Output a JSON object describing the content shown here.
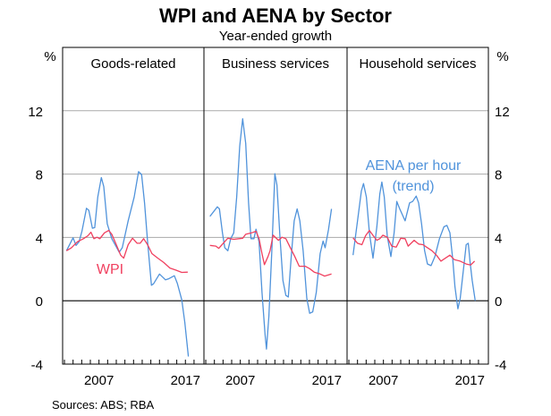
{
  "chart_data": {
    "type": "line",
    "title": "WPI and AENA by Sector",
    "subtitle": "Year-ended growth",
    "ylabel": "%",
    "ylim": [
      -4,
      16
    ],
    "yticks": [
      -4,
      0,
      4,
      8,
      12
    ],
    "xlim": [
      2002.79,
      2019.1
    ],
    "xtick_labels": [
      "2007",
      "2017"
    ],
    "xtick_values": [
      2007,
      2017
    ],
    "grid": true,
    "colors": {
      "AENA": "#5093db",
      "WPI": "#f0405f"
    },
    "annotations": {
      "wpi": "WPI",
      "aena_line1": "AENA per hour",
      "aena_line2": "(trend)"
    },
    "source": "Sources:   ABS; RBA",
    "panels": [
      {
        "title": "Goods-related",
        "series": [
          {
            "key": "AENA",
            "x": [
              2003.24,
              2004.0,
              2004.34,
              2004.69,
              2005.03,
              2005.55,
              2005.82,
              2006.24,
              2006.51,
              2006.86,
              2007.27,
              2007.55,
              2007.96,
              2008.48,
              2009.34,
              2009.69,
              2010.38,
              2011.07,
              2011.58,
              2011.93,
              2012.27,
              2012.62,
              2013.07,
              2013.31,
              2014.0,
              2014.69,
              2015.03,
              2015.72,
              2016.07,
              2016.58,
              2016.93,
              2017.34
            ],
            "y": [
              3.16,
              3.98,
              3.5,
              3.73,
              4.39,
              5.84,
              5.71,
              4.58,
              4.62,
              6.55,
              7.78,
              7.21,
              4.86,
              3.92,
              3.07,
              3.35,
              5.05,
              6.55,
              8.15,
              7.97,
              6.18,
              3.73,
              0.98,
              1.07,
              1.69,
              1.32,
              1.38,
              1.58,
              1.09,
              0.06,
              -1.36,
              -3.52
            ]
          },
          {
            "key": "WPI",
            "x": [
              2003.24,
              2003.82,
              2004.51,
              2005.2,
              2005.72,
              2006.07,
              2006.41,
              2006.76,
              2007.1,
              2007.62,
              2008.13,
              2008.48,
              2009.0,
              2009.51,
              2009.86,
              2010.38,
              2010.89,
              2011.41,
              2011.76,
              2012.17,
              2012.62,
              2013.13,
              2013.82,
              2014.51,
              2015.2,
              2015.89,
              2016.58,
              2017.27
            ],
            "y": [
              3.16,
              3.35,
              3.73,
              3.92,
              4.11,
              4.33,
              3.92,
              4.01,
              3.92,
              4.29,
              4.44,
              4.2,
              3.54,
              2.88,
              2.69,
              3.54,
              3.95,
              3.63,
              3.63,
              3.92,
              3.54,
              2.98,
              2.69,
              2.41,
              2.07,
              1.94,
              1.79,
              1.81
            ]
          }
        ]
      },
      {
        "title": "Business services",
        "series": [
          {
            "key": "AENA",
            "x": [
              2003.48,
              2004.34,
              2004.58,
              2004.93,
              2005.2,
              2005.55,
              2005.89,
              2006.24,
              2006.58,
              2006.93,
              2007.27,
              2007.62,
              2007.96,
              2008.24,
              2008.58,
              2008.82,
              2009.17,
              2009.51,
              2009.86,
              2010.03,
              2010.31,
              2010.65,
              2011.0,
              2011.24,
              2011.58,
              2011.93,
              2012.27,
              2012.55,
              2012.89,
              2013.24,
              2013.58,
              2013.89,
              2014.27,
              2014.69,
              2015.03,
              2015.38,
              2015.79,
              2016.24,
              2016.58,
              2016.82,
              2017.2,
              2017.55
            ],
            "y": [
              5.33,
              5.93,
              5.8,
              4.29,
              3.35,
              3.16,
              3.92,
              4.29,
              6.55,
              9.76,
              11.49,
              9.94,
              6.18,
              3.92,
              3.92,
              4.52,
              3.73,
              0.53,
              -2.11,
              -3.05,
              -0.98,
              3.16,
              8.02,
              7.31,
              4.11,
              1.28,
              0.34,
              0.24,
              2.79,
              5.05,
              5.8,
              5.05,
              3.16,
              0.15,
              -0.79,
              -0.7,
              0.53,
              2.98,
              3.77,
              3.35,
              4.48,
              5.8
            ]
          },
          {
            "key": "WPI",
            "x": [
              2003.48,
              2004.17,
              2004.51,
              2005.03,
              2005.55,
              2006.24,
              2007.27,
              2007.62,
              2008.31,
              2008.82,
              2009.17,
              2009.51,
              2009.79,
              2010.2,
              2010.44,
              2010.79,
              2011.41,
              2011.82,
              2012.27,
              2012.79,
              2013.31,
              2013.82,
              2014.51,
              2015.03,
              2015.55,
              2016.24,
              2016.75,
              2017.55
            ],
            "y": [
              3.5,
              3.45,
              3.31,
              3.63,
              3.95,
              3.88,
              3.95,
              4.2,
              4.29,
              4.39,
              3.92,
              2.98,
              2.28,
              2.79,
              3.16,
              4.14,
              3.82,
              4.01,
              3.92,
              3.35,
              2.79,
              2.18,
              2.18,
              2.03,
              1.81,
              1.69,
              1.56,
              1.69
            ]
          }
        ]
      },
      {
        "title": "Household services",
        "series": [
          {
            "key": "AENA",
            "x": [
              2003.48,
              2004.0,
              2004.45,
              2004.69,
              2005.03,
              2005.38,
              2005.79,
              2006.24,
              2006.58,
              2006.82,
              2007.1,
              2007.44,
              2007.86,
              2008.24,
              2008.55,
              2008.89,
              2009.51,
              2010.03,
              2010.38,
              2010.79,
              2011.07,
              2011.41,
              2011.76,
              2012.1,
              2012.51,
              2012.96,
              2013.48,
              2014.0,
              2014.34,
              2014.69,
              2015.03,
              2015.27,
              2015.62,
              2015.89,
              2016.31,
              2016.58,
              2016.82,
              2017.03,
              2017.27,
              2017.62
            ],
            "y": [
              2.88,
              5.05,
              6.93,
              7.4,
              6.55,
              4.29,
              2.69,
              4.67,
              6.74,
              7.5,
              6.55,
              4.11,
              2.79,
              4.29,
              6.27,
              5.8,
              5.05,
              6.18,
              6.27,
              6.61,
              6.18,
              4.86,
              3.16,
              2.32,
              2.22,
              2.79,
              3.92,
              4.67,
              4.76,
              4.29,
              2.6,
              0.9,
              -0.51,
              0.15,
              2.22,
              3.54,
              3.63,
              2.41,
              1.28,
              0.0
            ]
          },
          {
            "key": "WPI",
            "x": [
              2003.48,
              2004.0,
              2004.51,
              2004.93,
              2005.38,
              2005.82,
              2006.24,
              2006.58,
              2006.93,
              2007.44,
              2007.96,
              2008.48,
              2009.0,
              2009.51,
              2009.86,
              2010.55,
              2011.07,
              2011.58,
              2012.1,
              2012.62,
              2013.13,
              2013.65,
              2014.17,
              2014.69,
              2015.2,
              2015.89,
              2016.58,
              2017.1,
              2017.55
            ],
            "y": [
              3.97,
              3.63,
              3.54,
              4.11,
              4.44,
              4.11,
              3.82,
              3.92,
              4.14,
              4.01,
              3.45,
              3.39,
              3.95,
              3.92,
              3.45,
              3.82,
              3.58,
              3.54,
              3.35,
              3.16,
              2.88,
              2.5,
              2.69,
              2.88,
              2.6,
              2.5,
              2.32,
              2.26,
              2.5
            ]
          }
        ]
      }
    ]
  }
}
